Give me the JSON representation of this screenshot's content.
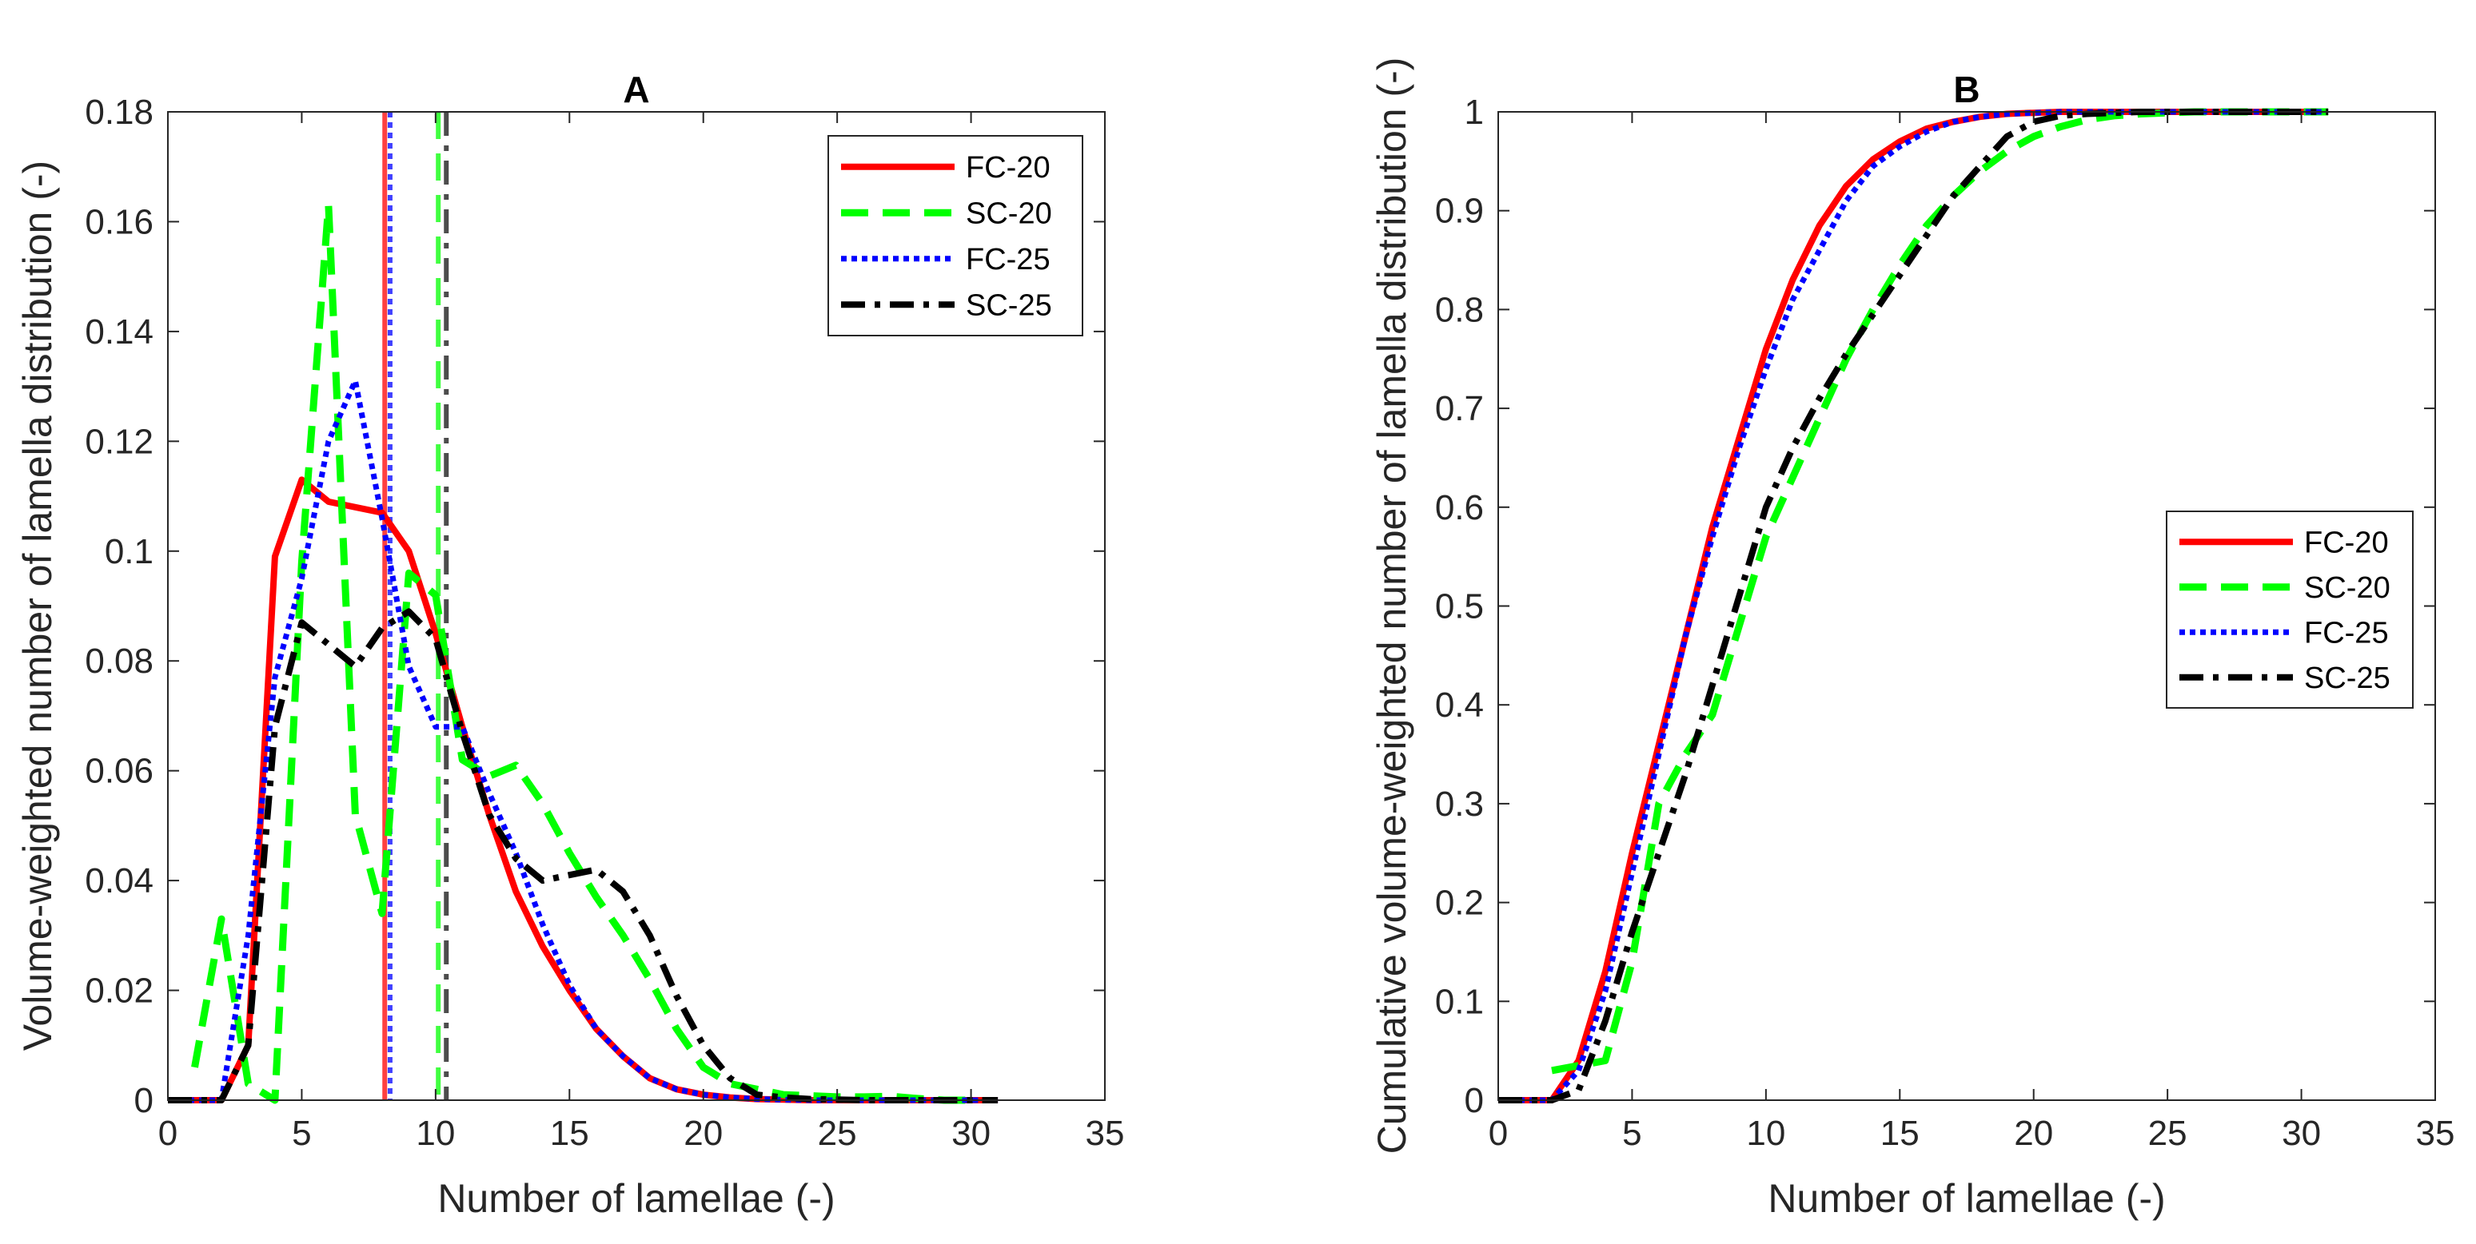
{
  "figure": {
    "colors": {
      "FC-20": "#ff0000",
      "SC-20": "#00ff00",
      "FC-25": "#0000ff",
      "SC-25": "#000000",
      "axis": "#262626"
    },
    "panels": [
      {
        "id": "A",
        "title": "A",
        "xlabel": "Number of lamellae (-)",
        "ylabel": "Volume-weighted number of lamella distribution (-)",
        "legend_position": "top-right"
      },
      {
        "id": "B",
        "title": "B",
        "xlabel": "Number of lamellae (-)",
        "ylabel": "Cumulative volume-weighted number of lamella distribution (-)",
        "legend_position": "middle-right"
      }
    ]
  },
  "chart_data": [
    {
      "type": "line",
      "title": "A",
      "xlabel": "Number of lamellae (-)",
      "ylabel": "Volume-weighted number of lamella distribution (-)",
      "xlim": [
        0,
        35
      ],
      "ylim": [
        0,
        0.18
      ],
      "xticks": [
        0,
        5,
        10,
        15,
        20,
        25,
        30,
        35
      ],
      "xtick_labels": [
        "0",
        "5",
        "10",
        "15",
        "20",
        "25",
        "30",
        "35"
      ],
      "yticks": [
        0,
        0.02,
        0.04,
        0.06,
        0.08,
        0.1,
        0.12,
        0.14,
        0.16,
        0.18
      ],
      "ytick_labels": [
        "0",
        "0.02",
        "0.04",
        "0.06",
        "0.08",
        "0.1",
        "0.12",
        "0.14",
        "0.16",
        "0.18"
      ],
      "grid": false,
      "legend": "top-right",
      "series": [
        {
          "name": "FC-20",
          "style": "solid",
          "x": [
            0,
            1,
            2,
            3,
            4,
            5,
            6,
            7,
            8,
            9,
            10,
            11,
            12,
            13,
            14,
            15,
            16,
            17,
            18,
            19,
            20,
            21,
            22,
            23,
            24,
            25,
            26,
            27,
            28,
            29,
            30,
            31
          ],
          "y": [
            0,
            0,
            0,
            0.01,
            0.099,
            0.113,
            0.109,
            0.108,
            0.107,
            0.1,
            0.085,
            0.068,
            0.052,
            0.038,
            0.028,
            0.02,
            0.013,
            0.008,
            0.004,
            0.002,
            0.001,
            0.0005,
            0.0002,
            0.0001,
            0,
            0,
            0,
            0,
            0,
            0,
            0,
            0
          ]
        },
        {
          "name": "SC-20",
          "style": "dashed",
          "x": [
            1,
            2,
            3,
            4,
            5,
            6,
            7,
            8,
            9,
            10,
            11,
            12,
            13,
            14,
            15,
            16,
            17,
            18,
            19,
            20,
            21,
            22,
            23,
            24,
            25,
            26,
            27,
            28,
            29,
            30
          ],
          "y": [
            0.006,
            0.033,
            0.003,
            0,
            0.098,
            0.163,
            0.052,
            0.034,
            0.096,
            0.092,
            0.062,
            0.059,
            0.061,
            0.054,
            0.045,
            0.037,
            0.03,
            0.022,
            0.013,
            0.006,
            0.003,
            0.002,
            0.001,
            0.0008,
            0.0006,
            0.0006,
            0.0007,
            0.0003,
            0,
            0
          ]
        },
        {
          "name": "FC-25",
          "style": "dotted",
          "x": [
            0,
            1,
            2,
            3,
            4,
            5,
            6,
            7,
            8,
            9,
            10,
            11,
            12,
            13,
            14,
            15,
            16,
            17,
            18,
            19,
            20,
            21,
            22,
            23,
            24,
            25,
            26,
            27,
            28,
            29,
            30,
            31
          ],
          "y": [
            0,
            0,
            0,
            0.03,
            0.077,
            0.095,
            0.12,
            0.131,
            0.106,
            0.079,
            0.068,
            0.068,
            0.056,
            0.045,
            0.032,
            0.021,
            0.013,
            0.008,
            0.004,
            0.002,
            0.001,
            0.0005,
            0.0002,
            0.0001,
            0,
            0,
            0,
            0,
            0,
            0,
            0,
            0
          ]
        },
        {
          "name": "SC-25",
          "style": "dashdot",
          "x": [
            0,
            1,
            2,
            3,
            4,
            5,
            6,
            7,
            8,
            9,
            10,
            11,
            12,
            13,
            14,
            15,
            16,
            17,
            18,
            19,
            20,
            21,
            22,
            23,
            24,
            25,
            26,
            27,
            28,
            29,
            30,
            31
          ],
          "y": [
            0,
            0,
            0,
            0.01,
            0.068,
            0.087,
            0.083,
            0.079,
            0.086,
            0.089,
            0.084,
            0.067,
            0.052,
            0.044,
            0.04,
            0.041,
            0.042,
            0.038,
            0.03,
            0.019,
            0.01,
            0.004,
            0.001,
            0.0005,
            0.0002,
            0.0001,
            0,
            0,
            0,
            0,
            0,
            0
          ]
        }
      ],
      "vertical_lines": [
        {
          "series": "FC-20",
          "x": 8.1,
          "style": "solid"
        },
        {
          "series": "FC-25",
          "x": 8.3,
          "style": "dotted"
        },
        {
          "series": "SC-20",
          "x": 10.1,
          "style": "dashed"
        },
        {
          "series": "SC-25",
          "x": 10.4,
          "style": "dashdot"
        }
      ]
    },
    {
      "type": "line",
      "title": "B",
      "xlabel": "Number of lamellae (-)",
      "ylabel": "Cumulative volume-weighted number of lamella distribution (-)",
      "xlim": [
        0,
        35
      ],
      "ylim": [
        0,
        1
      ],
      "xticks": [
        0,
        5,
        10,
        15,
        20,
        25,
        30,
        35
      ],
      "xtick_labels": [
        "0",
        "5",
        "10",
        "15",
        "20",
        "25",
        "30",
        "35"
      ],
      "yticks": [
        0,
        0.1,
        0.2,
        0.3,
        0.4,
        0.5,
        0.6,
        0.7,
        0.8,
        0.9,
        1
      ],
      "ytick_labels": [
        "0",
        "0.1",
        "0.2",
        "0.3",
        "0.4",
        "0.5",
        "0.6",
        "0.7",
        "0.8",
        "0.9",
        "1"
      ],
      "grid": false,
      "legend": "middle-right",
      "series": [
        {
          "name": "FC-20",
          "style": "solid",
          "x": [
            0,
            1,
            2,
            3,
            4,
            5,
            6,
            7,
            8,
            9,
            10,
            11,
            12,
            13,
            14,
            15,
            16,
            17,
            18,
            19,
            20,
            21,
            22,
            23,
            24,
            25,
            26,
            27,
            28,
            29,
            30,
            31
          ],
          "y": [
            0,
            0,
            0,
            0.04,
            0.13,
            0.25,
            0.36,
            0.47,
            0.58,
            0.67,
            0.76,
            0.83,
            0.885,
            0.925,
            0.952,
            0.97,
            0.983,
            0.99,
            0.995,
            0.998,
            0.999,
            1,
            1,
            1,
            1,
            1,
            1,
            1,
            1,
            1,
            1,
            1
          ]
        },
        {
          "name": "SC-20",
          "style": "dashed",
          "x": [
            2,
            3,
            4,
            5,
            6,
            7,
            8,
            9,
            10,
            11,
            12,
            13,
            14,
            15,
            16,
            17,
            18,
            19,
            20,
            21,
            22,
            23,
            24,
            25,
            26,
            27,
            28,
            29,
            30,
            31
          ],
          "y": [
            0.03,
            0.035,
            0.04,
            0.14,
            0.3,
            0.35,
            0.39,
            0.48,
            0.57,
            0.63,
            0.69,
            0.75,
            0.8,
            0.845,
            0.885,
            0.915,
            0.94,
            0.96,
            0.975,
            0.985,
            0.992,
            0.996,
            0.998,
            0.999,
            1,
            1,
            1,
            1,
            1,
            1
          ]
        },
        {
          "name": "FC-25",
          "style": "dotted",
          "x": [
            0,
            1,
            2,
            3,
            4,
            5,
            6,
            7,
            8,
            9,
            10,
            11,
            12,
            13,
            14,
            15,
            16,
            17,
            18,
            19,
            20,
            21,
            22,
            23,
            24,
            25,
            26,
            27,
            28,
            29,
            30,
            31
          ],
          "y": [
            0,
            0,
            0,
            0.03,
            0.11,
            0.23,
            0.35,
            0.47,
            0.57,
            0.66,
            0.74,
            0.81,
            0.86,
            0.91,
            0.945,
            0.965,
            0.98,
            0.99,
            0.995,
            0.998,
            0.999,
            1,
            1,
            1,
            1,
            1,
            1,
            1,
            1,
            1,
            1,
            1
          ]
        },
        {
          "name": "SC-25",
          "style": "dashdot",
          "x": [
            0,
            1,
            2,
            3,
            4,
            5,
            6,
            7,
            8,
            9,
            10,
            11,
            12,
            13,
            14,
            15,
            16,
            17,
            18,
            19,
            20,
            21,
            22,
            23,
            24,
            25,
            26,
            27,
            28,
            29,
            30,
            31
          ],
          "y": [
            0,
            0,
            0,
            0.01,
            0.08,
            0.17,
            0.25,
            0.33,
            0.42,
            0.51,
            0.6,
            0.66,
            0.71,
            0.755,
            0.795,
            0.835,
            0.875,
            0.915,
            0.945,
            0.975,
            0.99,
            0.996,
            0.998,
            0.999,
            1,
            1,
            1,
            1,
            1,
            1,
            1,
            1
          ]
        }
      ]
    }
  ]
}
